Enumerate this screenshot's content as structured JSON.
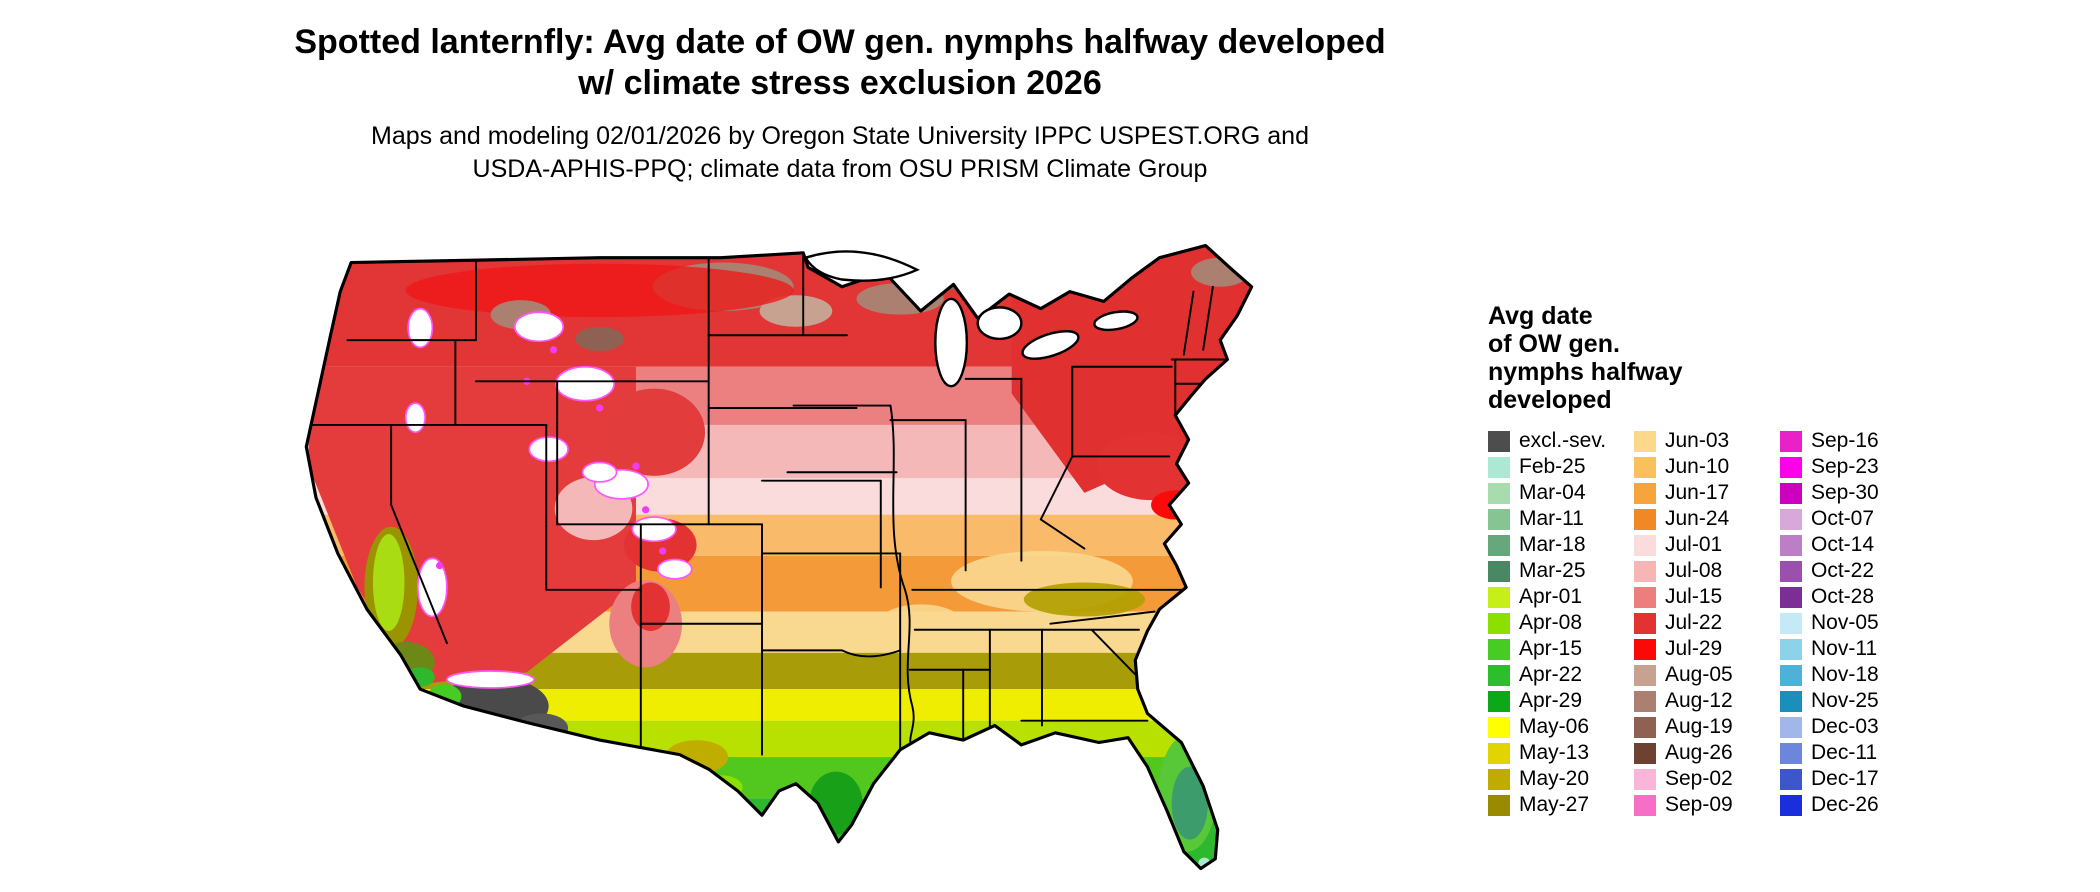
{
  "title": {
    "line1": "Spotted lanternfly: Avg date of OW gen. nymphs halfway developed",
    "line2": "w/ climate stress exclusion 2026"
  },
  "subtitle": {
    "line1": "Maps and modeling 02/01/2026 by Oregon State University IPPC USPEST.ORG and",
    "line2": "USDA-APHIS-PPQ; climate data from OSU PRISM Climate Group"
  },
  "legend": {
    "title_lines": [
      "Avg date",
      "of OW gen.",
      "nymphs halfway",
      "developed"
    ],
    "columns": [
      [
        {
          "label": "excl.-sev.",
          "color": "#4d4d4d"
        },
        {
          "label": "Feb-25",
          "color": "#ace8d4"
        },
        {
          "label": "Mar-04",
          "color": "#a6dcae"
        },
        {
          "label": "Mar-11",
          "color": "#86c494"
        },
        {
          "label": "Mar-18",
          "color": "#66a87c"
        },
        {
          "label": "Mar-25",
          "color": "#4a8864"
        },
        {
          "label": "Apr-01",
          "color": "#c6ee18"
        },
        {
          "label": "Apr-08",
          "color": "#8ce000"
        },
        {
          "label": "Apr-15",
          "color": "#46cc22"
        },
        {
          "label": "Apr-22",
          "color": "#2cbe2c"
        },
        {
          "label": "Apr-29",
          "color": "#0ca818"
        },
        {
          "label": "May-06",
          "color": "#ffff00"
        },
        {
          "label": "May-13",
          "color": "#e2d400"
        },
        {
          "label": "May-20",
          "color": "#c0ac00"
        },
        {
          "label": "May-27",
          "color": "#9a8a00"
        }
      ],
      [
        {
          "label": "Jun-03",
          "color": "#fbd88c"
        },
        {
          "label": "Jun-10",
          "color": "#f9c05e"
        },
        {
          "label": "Jun-17",
          "color": "#f6a43c"
        },
        {
          "label": "Jun-24",
          "color": "#f08826"
        },
        {
          "label": "Jul-01",
          "color": "#fbdcdc"
        },
        {
          "label": "Jul-08",
          "color": "#f7b6b6"
        },
        {
          "label": "Jul-15",
          "color": "#ec7e7e"
        },
        {
          "label": "Jul-22",
          "color": "#e23232"
        },
        {
          "label": "Jul-29",
          "color": "#fb0808"
        },
        {
          "label": "Aug-05",
          "color": "#c8a290"
        },
        {
          "label": "Aug-12",
          "color": "#ab8070"
        },
        {
          "label": "Aug-19",
          "color": "#8f6152"
        },
        {
          "label": "Aug-26",
          "color": "#6e4232"
        },
        {
          "label": "Sep-02",
          "color": "#fab6d8"
        },
        {
          "label": "Sep-09",
          "color": "#f66ec6"
        }
      ],
      [
        {
          "label": "Sep-16",
          "color": "#e822c8"
        },
        {
          "label": "Sep-23",
          "color": "#fc00e8"
        },
        {
          "label": "Sep-30",
          "color": "#cc00be"
        },
        {
          "label": "Oct-07",
          "color": "#d8a8da"
        },
        {
          "label": "Oct-14",
          "color": "#bc7ec6"
        },
        {
          "label": "Oct-22",
          "color": "#9c50ae"
        },
        {
          "label": "Oct-28",
          "color": "#7c2e94"
        },
        {
          "label": "Nov-05",
          "color": "#c4eaf8"
        },
        {
          "label": "Nov-11",
          "color": "#8ed2ea"
        },
        {
          "label": "Nov-18",
          "color": "#4eb2d8"
        },
        {
          "label": "Nov-25",
          "color": "#1c8eba"
        },
        {
          "label": "Dec-03",
          "color": "#a2b6ea"
        },
        {
          "label": "Dec-11",
          "color": "#6c86dc"
        },
        {
          "label": "Dec-17",
          "color": "#3e56cc"
        },
        {
          "label": "Dec-26",
          "color": "#1a2edd"
        }
      ]
    ]
  }
}
